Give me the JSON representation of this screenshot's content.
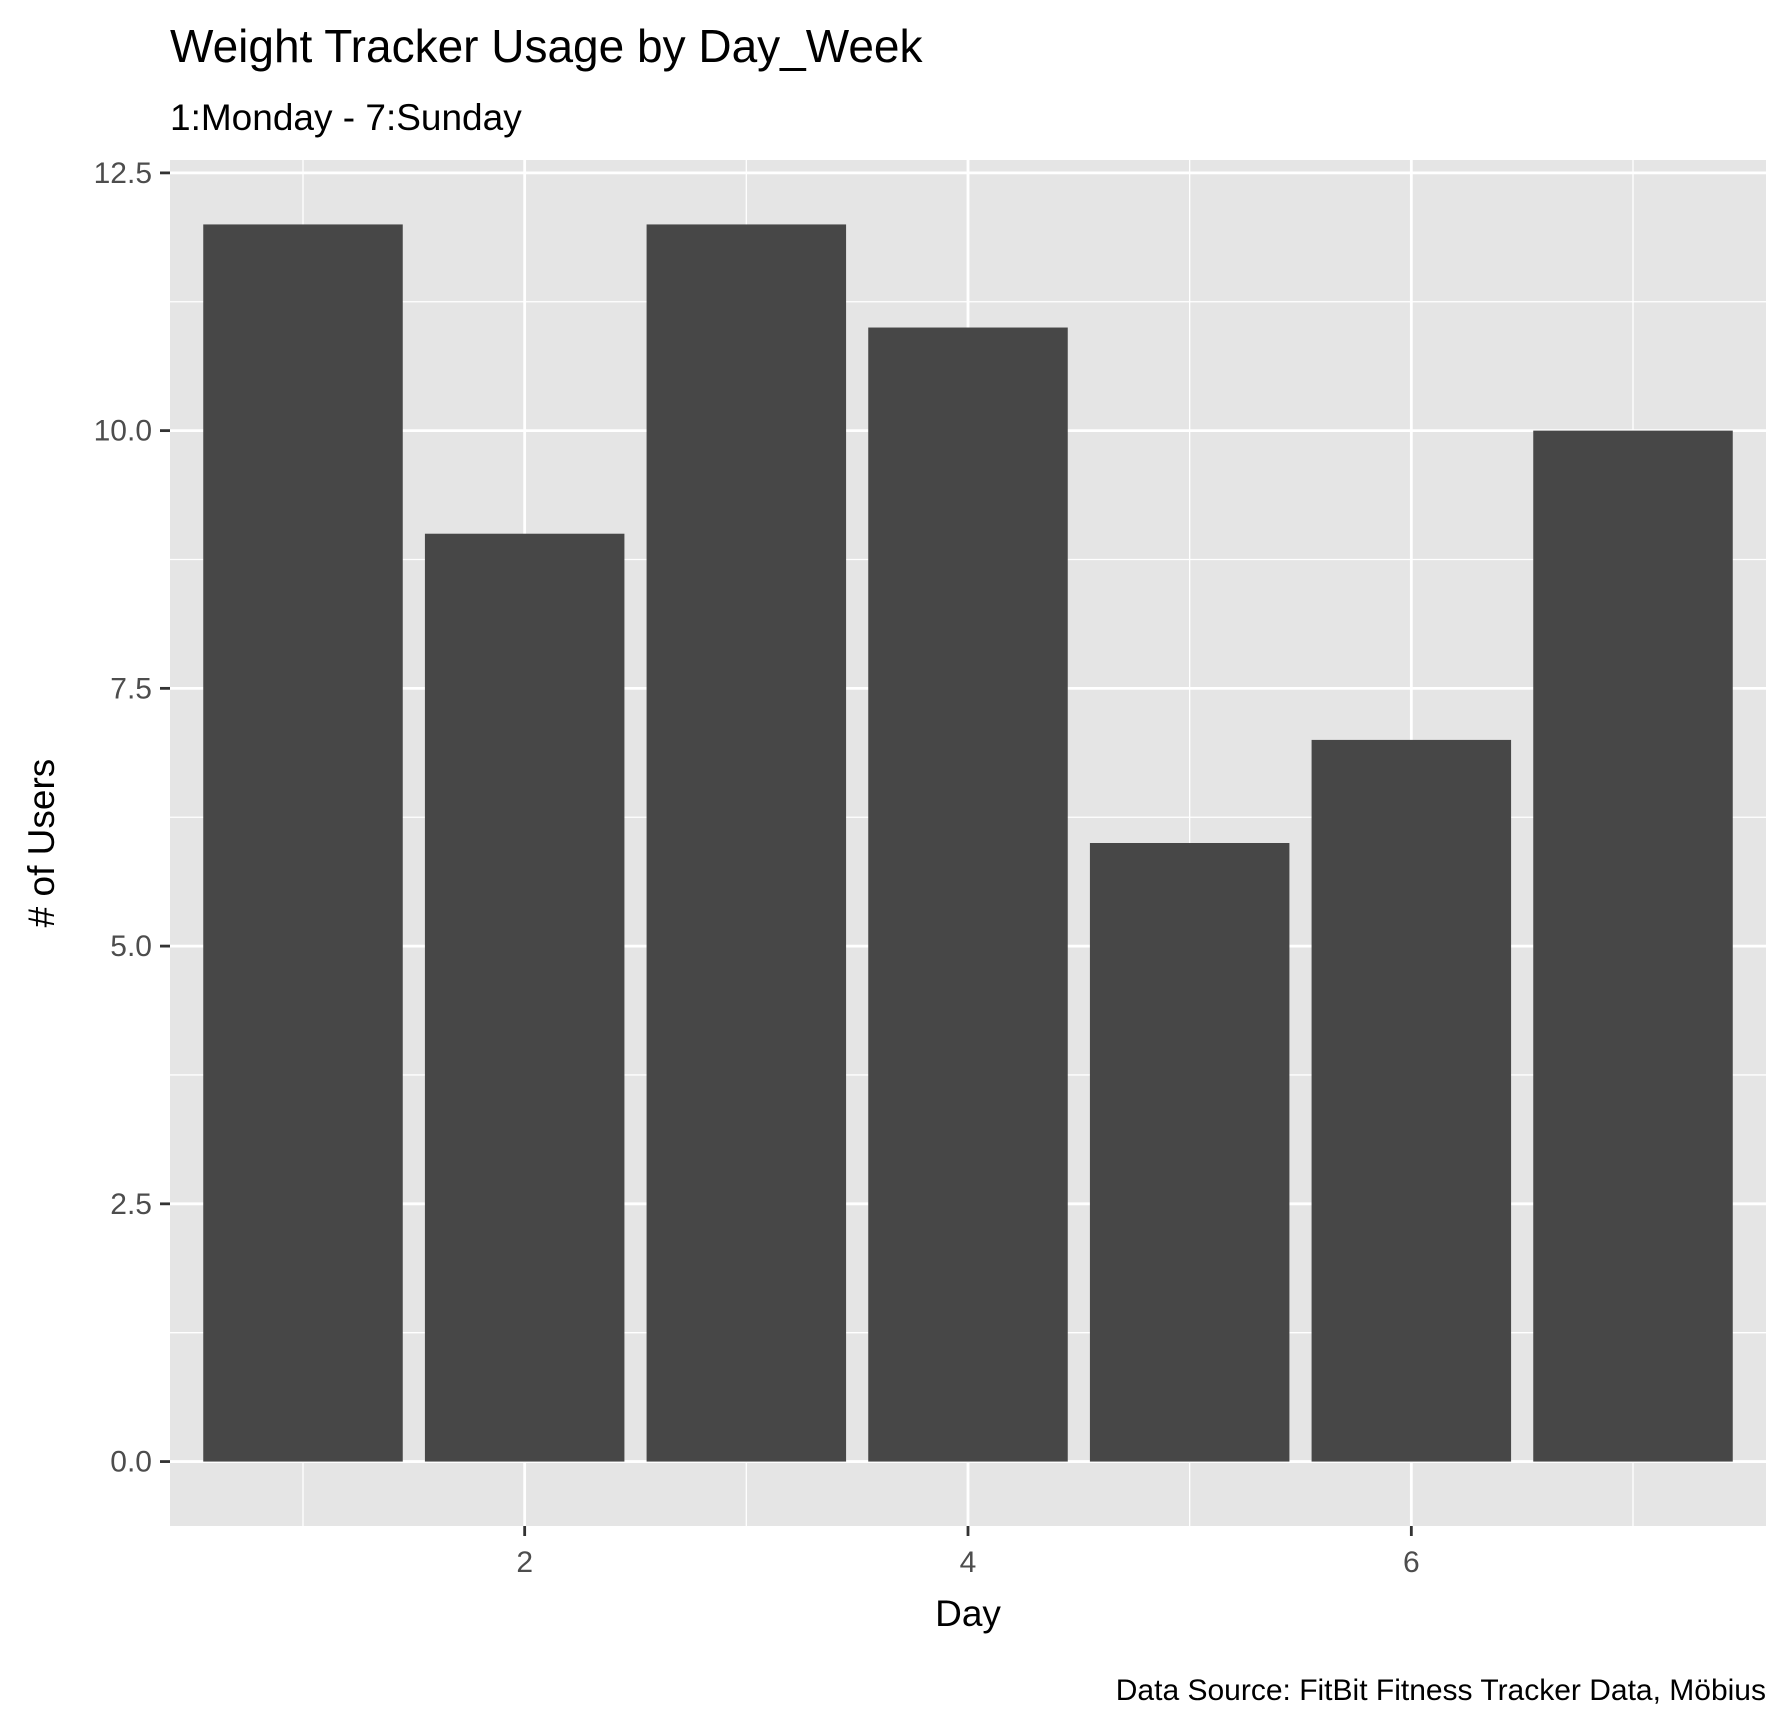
{
  "chart_data": {
    "type": "bar",
    "title": "Weight Tracker Usage by Day_Week",
    "subtitle": "1:Monday - 7:Sunday",
    "xlabel": "Day",
    "ylabel": "# of Users",
    "caption": "Data Source: FitBit Fitness Tracker Data, Möbius",
    "x": [
      1,
      2,
      3,
      4,
      5,
      6,
      7
    ],
    "values": [
      12,
      9,
      12,
      11,
      6,
      7,
      10
    ],
    "xlim": [
      0.4,
      7.6
    ],
    "ylim": [
      -0.625,
      12.625
    ],
    "x_ticks": [
      2,
      4,
      6
    ],
    "x_tick_labels": [
      "2",
      "4",
      "6"
    ],
    "y_ticks": [
      0,
      2.5,
      5,
      7.5,
      10,
      12.5
    ],
    "y_tick_labels": [
      "0.0",
      "2.5",
      "5.0",
      "7.5",
      "10.0",
      "12.5"
    ],
    "x_minor_ticks": [
      1,
      3,
      5,
      7
    ],
    "y_minor_ticks": [
      1.25,
      3.75,
      6.25,
      8.75,
      11.25
    ],
    "grid": true,
    "legend": "none",
    "colors": {
      "bar": "#474747",
      "panel": "#e5e5e5",
      "grid": "#ffffff",
      "tick_text": "#4d4d4d",
      "text": "#000000"
    }
  }
}
